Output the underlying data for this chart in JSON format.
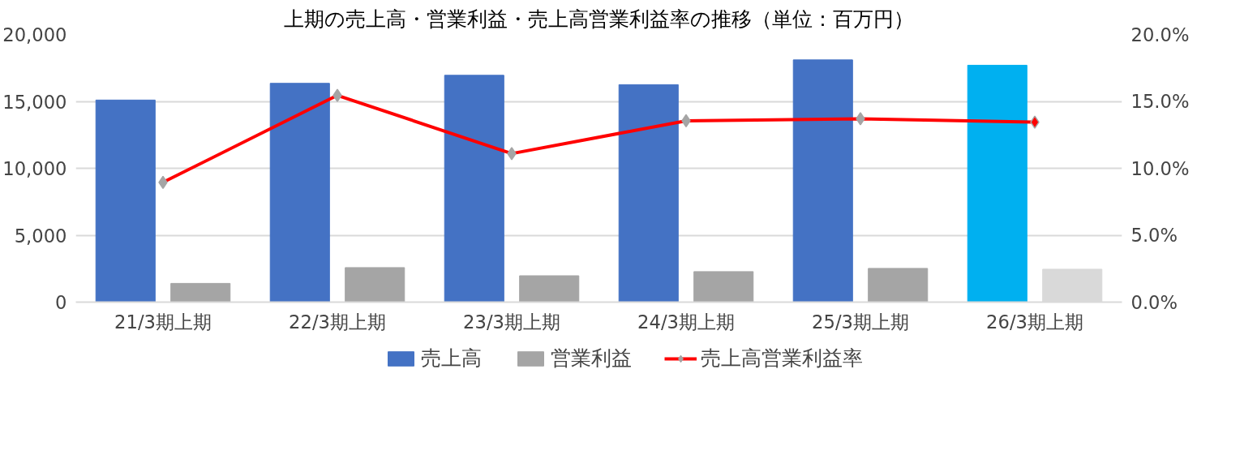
{
  "chart_data": {
    "type": "bar",
    "title": "上期の売上高・営業利益・売上高営業利益率の推移（単位：百万円）",
    "categories": [
      "21/3期上期",
      "22/3期上期",
      "23/3期上期",
      "24/3期上期",
      "25/3期上期",
      "26/3期上期"
    ],
    "series": [
      {
        "name": "売上高",
        "color": "#4472c4",
        "colors": [
          null,
          null,
          null,
          null,
          null,
          "#00b0f0"
        ],
        "values": [
          15100,
          16350,
          16950,
          16250,
          18100,
          17700
        ]
      },
      {
        "name": "営業利益",
        "color": "#a5a5a5",
        "colors": [
          null,
          null,
          null,
          null,
          null,
          "#d9d9d9"
        ],
        "values": [
          1400,
          2580,
          1970,
          2280,
          2520,
          2460
        ]
      },
      {
        "name": "売上高営業利益率",
        "type": "line",
        "axis": "y2",
        "color": "#ff0000",
        "colors": [
          "#a5a5a5",
          "#a5a5a5",
          "#a5a5a5",
          "#a5a5a5",
          "#a5a5a5",
          "#ff0000"
        ],
        "marker": "diamond",
        "values": [
          8.95,
          15.45,
          11.1,
          13.55,
          13.7,
          13.45
        ]
      }
    ],
    "ylim": [
      0,
      20000
    ],
    "yticks": [
      0,
      {
        "value": 5000,
        "label": "5,000"
      },
      {
        "value": 10000,
        "label": "10,000"
      },
      {
        "value": 15000,
        "label": "15,000"
      },
      {
        "value": 20000,
        "label": "20,000"
      }
    ],
    "y2lim": [
      0,
      20
    ],
    "y2ticks": [
      {
        "value": 0,
        "label": "0.0%"
      },
      {
        "value": 5,
        "label": "5.0%"
      },
      {
        "value": 10,
        "label": "10.0%"
      },
      {
        "value": 15,
        "label": "15.0%"
      },
      {
        "value": 20,
        "label": "20.0%"
      }
    ],
    "grid": "y",
    "legend": "bottom"
  }
}
